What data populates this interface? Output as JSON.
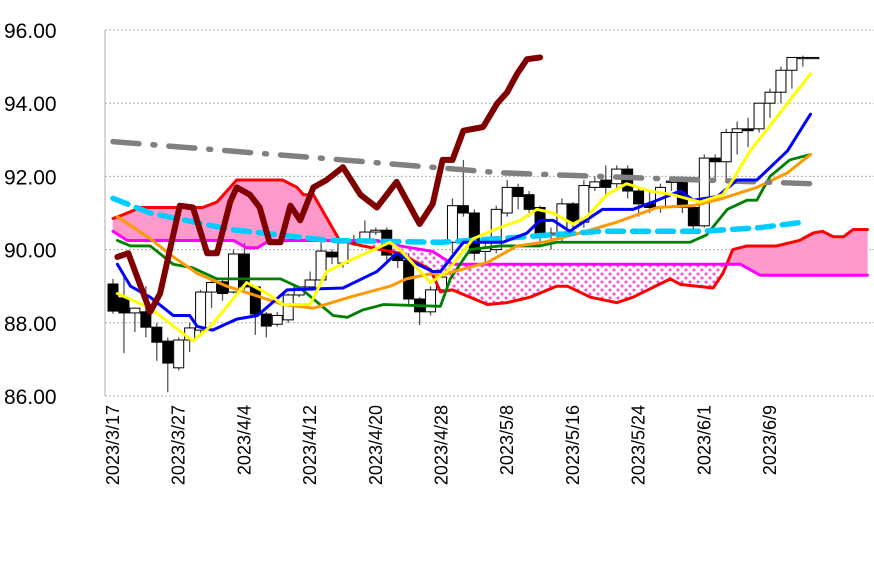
{
  "chart_data": {
    "type": "line",
    "title": "",
    "xlabel": "",
    "ylabel": "",
    "x_unit": "trading-day index (0 = 2023/3/17)",
    "ylim": [
      86,
      96
    ],
    "yticks": [
      "86.00",
      "88.00",
      "90.00",
      "92.00",
      "94.00",
      "96.00"
    ],
    "ytick_values": [
      86,
      88,
      90,
      92,
      94,
      96
    ],
    "xticks": [
      "2023/3/17",
      "2023/3/27",
      "2023/4/4",
      "2023/4/12",
      "2023/4/20",
      "2023/4/28",
      "2023/5/8",
      "2023/5/16",
      "2023/5/24",
      "2023/6/1",
      "2023/6/9"
    ],
    "xtick_index": [
      0,
      6,
      12,
      18,
      24,
      30,
      36,
      42,
      48,
      54,
      60
    ],
    "xlim": [
      -0.5,
      69
    ],
    "grid": "horizontal dotted",
    "candles_ohlc": [
      [
        89.06,
        89.2,
        88.25,
        88.32
      ],
      [
        88.68,
        89.36,
        87.17,
        88.27
      ],
      [
        88.27,
        88.4,
        87.75,
        88.4
      ],
      [
        88.3,
        89.0,
        87.6,
        87.88
      ],
      [
        87.88,
        88.0,
        86.96,
        87.47
      ],
      [
        87.5,
        87.6,
        86.1,
        86.9
      ],
      [
        86.77,
        87.6,
        86.7,
        87.53
      ],
      [
        87.53,
        88.0,
        87.2,
        87.86
      ],
      [
        87.8,
        88.9,
        87.7,
        88.84
      ],
      [
        88.84,
        89.3,
        88.4,
        89.1
      ],
      [
        89.12,
        89.2,
        88.6,
        88.8
      ],
      [
        88.84,
        90.0,
        88.8,
        89.88
      ],
      [
        89.88,
        90.18,
        88.9,
        88.98
      ],
      [
        88.98,
        89.0,
        87.67,
        88.24
      ],
      [
        88.24,
        88.3,
        87.6,
        87.91
      ],
      [
        87.96,
        88.3,
        87.9,
        88.2
      ],
      [
        88.08,
        88.8,
        88.0,
        88.76
      ],
      [
        88.76,
        89.0,
        88.7,
        88.98
      ],
      [
        88.98,
        89.4,
        88.9,
        89.17
      ],
      [
        89.17,
        90.2,
        89.1,
        89.96
      ],
      [
        89.93,
        90.0,
        89.6,
        89.8
      ],
      [
        89.63,
        90.3,
        89.5,
        90.18
      ],
      [
        90.2,
        90.4,
        90.1,
        90.26
      ],
      [
        90.26,
        90.8,
        90.2,
        90.48
      ],
      [
        90.48,
        90.6,
        90.4,
        90.53
      ],
      [
        90.53,
        90.6,
        89.7,
        89.85
      ],
      [
        89.85,
        89.9,
        89.5,
        89.7
      ],
      [
        89.7,
        89.9,
        88.5,
        88.65
      ],
      [
        88.65,
        88.7,
        87.94,
        88.3
      ],
      [
        88.3,
        89.0,
        88.2,
        88.9
      ],
      [
        88.9,
        89.3,
        88.8,
        89.25
      ],
      [
        90.2,
        91.4,
        89.9,
        91.2
      ],
      [
        91.2,
        92.45,
        90.9,
        91.0
      ],
      [
        91.0,
        91.1,
        89.7,
        89.9
      ],
      [
        89.95,
        90.2,
        89.6,
        90.05
      ],
      [
        90.0,
        91.2,
        89.9,
        91.1
      ],
      [
        91.0,
        91.9,
        90.9,
        91.7
      ],
      [
        91.7,
        91.8,
        91.1,
        91.45
      ],
      [
        91.5,
        91.6,
        90.9,
        91.1
      ],
      [
        91.15,
        91.2,
        90.1,
        90.4
      ],
      [
        90.4,
        90.6,
        90.0,
        90.45
      ],
      [
        90.35,
        91.4,
        90.2,
        91.25
      ],
      [
        91.25,
        91.3,
        90.5,
        90.75
      ],
      [
        90.75,
        91.9,
        90.6,
        91.75
      ],
      [
        91.7,
        92.0,
        91.6,
        91.85
      ],
      [
        91.9,
        92.3,
        91.5,
        91.7
      ],
      [
        91.8,
        92.3,
        91.6,
        92.2
      ],
      [
        92.2,
        92.3,
        91.4,
        91.6
      ],
      [
        91.6,
        91.7,
        90.9,
        91.25
      ],
      [
        91.25,
        91.6,
        91.0,
        91.15
      ],
      [
        91.15,
        91.8,
        91.0,
        91.7
      ],
      [
        91.85,
        92.0,
        91.6,
        91.87
      ],
      [
        91.9,
        92.0,
        91.0,
        91.15
      ],
      [
        91.15,
        91.2,
        90.5,
        90.65
      ],
      [
        90.65,
        92.6,
        90.6,
        92.5
      ],
      [
        92.5,
        92.6,
        91.9,
        92.4
      ],
      [
        92.4,
        93.3,
        91.9,
        93.2
      ],
      [
        93.2,
        93.5,
        92.6,
        93.3
      ],
      [
        93.3,
        93.6,
        92.8,
        93.25
      ],
      [
        93.3,
        94.0,
        93.2,
        94.0
      ],
      [
        94.0,
        94.4,
        93.6,
        94.3
      ],
      [
        94.3,
        95.0,
        94.0,
        94.9
      ],
      [
        94.9,
        95.25,
        94.4,
        95.25
      ],
      [
        95.25,
        95.3,
        95.0,
        95.25
      ],
      [
        95.25,
        95.25,
        95.25,
        95.25
      ]
    ],
    "series": [
      {
        "name": "senkou-span-a",
        "color": "#ff0000",
        "points": [
          [
            0,
            90.85
          ],
          [
            0.9,
            90.95
          ],
          [
            2.5,
            91.15
          ],
          [
            8.2,
            91.15
          ],
          [
            9.5,
            91.3
          ],
          [
            11.3,
            91.9
          ],
          [
            15.5,
            91.9
          ],
          [
            16.8,
            91.7
          ],
          [
            17.4,
            91.5
          ],
          [
            18.3,
            91.5
          ],
          [
            20.7,
            90.25
          ],
          [
            22.8,
            90.1
          ],
          [
            25.3,
            89.95
          ],
          [
            26.2,
            89.9
          ],
          [
            29,
            89.45
          ],
          [
            29.9,
            88.85
          ],
          [
            31,
            88.9
          ],
          [
            34.2,
            88.5
          ],
          [
            36,
            88.55
          ],
          [
            38.1,
            88.7
          ],
          [
            40.5,
            89.0
          ],
          [
            41.5,
            89.0
          ],
          [
            43.6,
            88.7
          ],
          [
            46,
            88.55
          ],
          [
            47.5,
            88.7
          ],
          [
            50.9,
            89.2
          ],
          [
            51.8,
            89.05
          ],
          [
            54.8,
            88.95
          ],
          [
            55.7,
            89.35
          ],
          [
            56.6,
            90.0
          ],
          [
            57.9,
            90.1
          ],
          [
            60.6,
            90.1
          ],
          [
            62.7,
            90.25
          ],
          [
            63.9,
            90.45
          ],
          [
            64.8,
            90.5
          ],
          [
            65.8,
            90.35
          ],
          [
            66.7,
            90.35
          ],
          [
            67.6,
            90.55
          ],
          [
            68.9,
            90.55
          ]
        ]
      },
      {
        "name": "senkou-span-b",
        "color": "#ff00ff",
        "points": [
          [
            0,
            90.5
          ],
          [
            1.3,
            90.25
          ],
          [
            11,
            90.25
          ],
          [
            12.2,
            90.05
          ],
          [
            13.2,
            90.05
          ],
          [
            14.3,
            90.25
          ],
          [
            24.1,
            90.25
          ],
          [
            26.2,
            90.1
          ],
          [
            29.2,
            89.95
          ],
          [
            30.5,
            89.7
          ],
          [
            31,
            89.6
          ],
          [
            57.3,
            89.6
          ],
          [
            59.1,
            89.3
          ],
          [
            68.9,
            89.3
          ]
        ]
      },
      {
        "name": "long-term-ma",
        "color": "#808080",
        "points": [
          [
            0,
            92.95
          ],
          [
            18.9,
            92.5
          ],
          [
            35.3,
            92.1
          ],
          [
            49,
            91.95
          ],
          [
            63.7,
            91.8
          ]
        ]
      },
      {
        "name": "mid-term-ma",
        "color": "#00ccff",
        "points": [
          [
            0,
            91.4
          ],
          [
            3.4,
            91.0
          ],
          [
            10.7,
            90.55
          ],
          [
            19.8,
            90.25
          ],
          [
            29.9,
            90.2
          ],
          [
            35.3,
            90.3
          ],
          [
            44.5,
            90.5
          ],
          [
            53.6,
            90.5
          ],
          [
            59.1,
            90.6
          ],
          [
            63,
            90.75
          ]
        ]
      },
      {
        "name": "short-term-ma",
        "color": "#ff9900",
        "points": [
          [
            0.4,
            90.9
          ],
          [
            3.4,
            90.3
          ],
          [
            5.5,
            89.8
          ],
          [
            7.7,
            89.35
          ],
          [
            10.4,
            89.0
          ],
          [
            12.5,
            88.8
          ],
          [
            15.5,
            88.5
          ],
          [
            18.3,
            88.4
          ],
          [
            21.6,
            88.7
          ],
          [
            25.3,
            89.0
          ],
          [
            26.8,
            89.2
          ],
          [
            29.2,
            89.35
          ],
          [
            29.9,
            89.3
          ],
          [
            34.2,
            89.65
          ],
          [
            36.9,
            90.1
          ],
          [
            39.3,
            90.2
          ],
          [
            42.6,
            90.45
          ],
          [
            46,
            90.75
          ],
          [
            49.7,
            91.15
          ],
          [
            53,
            91.2
          ],
          [
            55.7,
            91.4
          ],
          [
            58.8,
            91.7
          ],
          [
            61.6,
            92.1
          ],
          [
            63.7,
            92.6
          ]
        ]
      },
      {
        "name": "green-line",
        "color": "#008000",
        "points": [
          [
            0.4,
            90.25
          ],
          [
            1.6,
            90.1
          ],
          [
            3.4,
            90.1
          ],
          [
            5.5,
            89.6
          ],
          [
            7.3,
            89.5
          ],
          [
            9.5,
            89.2
          ],
          [
            15.3,
            89.2
          ],
          [
            17.1,
            88.95
          ],
          [
            20.1,
            88.2
          ],
          [
            21.4,
            88.15
          ],
          [
            22.8,
            88.35
          ],
          [
            24.7,
            88.5
          ],
          [
            29.9,
            88.45
          ],
          [
            30.8,
            89.2
          ],
          [
            32.6,
            90.0
          ],
          [
            35.3,
            90.1
          ],
          [
            39,
            90.1
          ],
          [
            40.5,
            90.2
          ],
          [
            52.7,
            90.2
          ],
          [
            54.2,
            90.4
          ],
          [
            56.1,
            91.1
          ],
          [
            57.9,
            91.35
          ],
          [
            58.8,
            91.35
          ],
          [
            60,
            92.0
          ],
          [
            61.8,
            92.45
          ],
          [
            63.7,
            92.6
          ]
        ]
      },
      {
        "name": "kijun-sen",
        "color": "#0000ff",
        "points": [
          [
            0.4,
            89.6
          ],
          [
            1.6,
            89.0
          ],
          [
            3.4,
            88.7
          ],
          [
            5.5,
            88.2
          ],
          [
            7,
            88.2
          ],
          [
            7.7,
            87.9
          ],
          [
            9.1,
            87.8
          ],
          [
            11.3,
            88.1
          ],
          [
            13.2,
            88.2
          ],
          [
            15.9,
            88.9
          ],
          [
            21,
            88.95
          ],
          [
            24.1,
            89.4
          ],
          [
            25.9,
            89.9
          ],
          [
            27.1,
            89.7
          ],
          [
            29.2,
            89.4
          ],
          [
            29.9,
            89.4
          ],
          [
            32,
            90.2
          ],
          [
            35.6,
            90.2
          ],
          [
            37.8,
            90.45
          ],
          [
            39,
            90.8
          ],
          [
            40.2,
            90.8
          ],
          [
            41.7,
            90.5
          ],
          [
            44.7,
            91.1
          ],
          [
            47.5,
            91.1
          ],
          [
            49.3,
            91.3
          ],
          [
            51.8,
            91.6
          ],
          [
            53,
            91.35
          ],
          [
            55.2,
            91.45
          ],
          [
            57,
            91.9
          ],
          [
            58.8,
            91.9
          ],
          [
            61.6,
            92.7
          ],
          [
            63.7,
            93.7
          ]
        ]
      },
      {
        "name": "tenkan-sen",
        "color": "#ffff00",
        "points": [
          [
            0.4,
            88.8
          ],
          [
            3.4,
            88.4
          ],
          [
            7.3,
            87.5
          ],
          [
            8.9,
            87.9
          ],
          [
            12.2,
            89.1
          ],
          [
            14.1,
            88.8
          ],
          [
            15.5,
            88.5
          ],
          [
            18,
            88.5
          ],
          [
            19.5,
            89.4
          ],
          [
            21.6,
            89.7
          ],
          [
            25.3,
            90.2
          ],
          [
            26.2,
            90.0
          ],
          [
            29,
            89.1
          ],
          [
            30.5,
            89.4
          ],
          [
            32.9,
            90.3
          ],
          [
            35.3,
            90.6
          ],
          [
            37.2,
            90.8
          ],
          [
            38.7,
            91.1
          ],
          [
            40.2,
            91.0
          ],
          [
            42,
            90.7
          ],
          [
            43.3,
            90.9
          ],
          [
            45.1,
            91.5
          ],
          [
            46.9,
            91.8
          ],
          [
            49,
            91.6
          ],
          [
            51.1,
            91.5
          ],
          [
            53.6,
            91.3
          ],
          [
            55.7,
            91.5
          ],
          [
            56.6,
            91.9
          ],
          [
            58.2,
            92.7
          ],
          [
            60.3,
            93.5
          ],
          [
            63.7,
            94.8
          ]
        ]
      },
      {
        "name": "chikou-span",
        "color": "#800000",
        "points": [
          [
            0.4,
            89.8
          ],
          [
            1.4,
            89.9
          ],
          [
            3.4,
            88.3
          ],
          [
            4.3,
            88.8
          ],
          [
            6.1,
            91.2
          ],
          [
            7.3,
            91.15
          ],
          [
            8.6,
            89.9
          ],
          [
            9.5,
            89.9
          ],
          [
            10.7,
            91.3
          ],
          [
            11.3,
            91.7
          ],
          [
            12.5,
            91.5
          ],
          [
            13.4,
            91.15
          ],
          [
            14.3,
            90.2
          ],
          [
            15.3,
            90.2
          ],
          [
            16.2,
            91.2
          ],
          [
            17.1,
            90.8
          ],
          [
            18.3,
            91.7
          ],
          [
            19.5,
            91.9
          ],
          [
            21,
            92.25
          ],
          [
            22.6,
            91.5
          ],
          [
            24.1,
            91.15
          ],
          [
            25.9,
            91.85
          ],
          [
            28,
            90.7
          ],
          [
            29.2,
            91.25
          ],
          [
            30.1,
            92.45
          ],
          [
            31,
            92.45
          ],
          [
            32,
            93.25
          ],
          [
            33.8,
            93.35
          ],
          [
            35.1,
            94.0
          ],
          [
            36,
            94.3
          ],
          [
            36.9,
            94.8
          ],
          [
            37.8,
            95.2
          ],
          [
            39,
            95.25
          ]
        ]
      }
    ],
    "cloud_colors": {
      "bullish_fill": "#ff99cc",
      "bearish_dots": "#ff00ff"
    }
  }
}
